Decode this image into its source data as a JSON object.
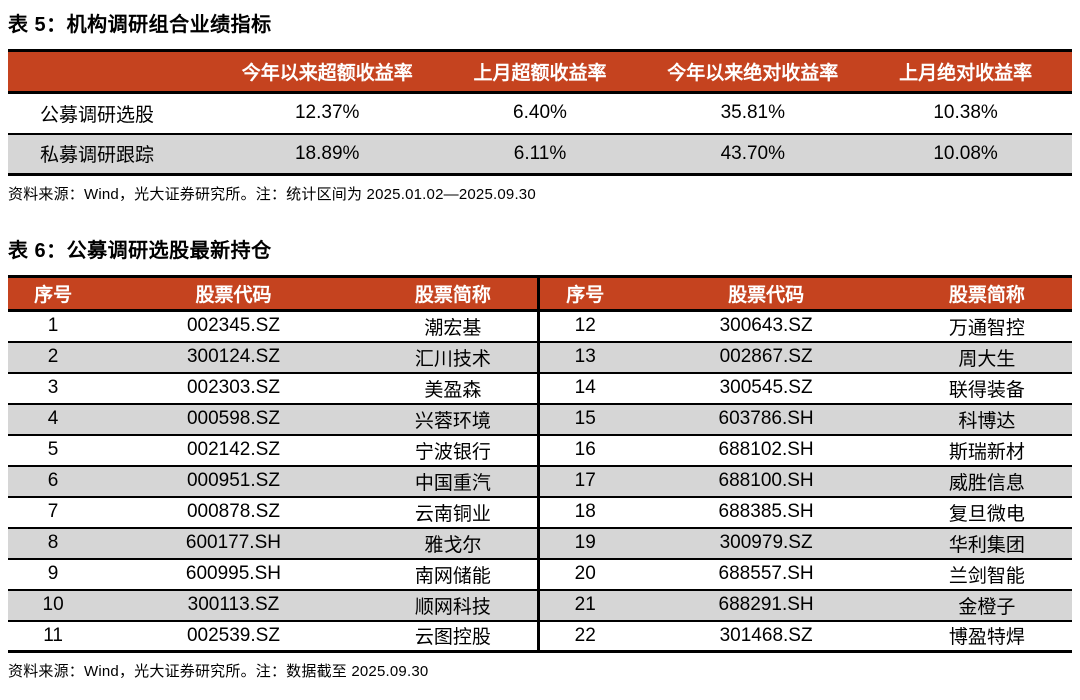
{
  "colors": {
    "header_bg": "#C5431F",
    "alt_row_bg": "#D6D6D6",
    "border": "#000000",
    "header_text": "#FFFFFF"
  },
  "table5": {
    "title": "表 5：机构调研组合业绩指标",
    "col_headers": [
      "今年以来超额收益率",
      "上月超额收益率",
      "今年以来绝对收益率",
      "上月绝对收益率"
    ],
    "rows": [
      {
        "label": "公募调研选股",
        "values": [
          "12.37%",
          "6.40%",
          "35.81%",
          "10.38%"
        ]
      },
      {
        "label": "私募调研跟踪",
        "values": [
          "18.89%",
          "6.11%",
          "43.70%",
          "10.08%"
        ]
      }
    ],
    "source_note": "资料来源：Wind，光大证券研究所。注：统计区间为 2025.01.02—2025.09.30"
  },
  "table6": {
    "title": "表 6：公募调研选股最新持仓",
    "col_headers": [
      "序号",
      "股票代码",
      "股票简称"
    ],
    "left_rows": [
      {
        "no": "1",
        "code": "002345.SZ",
        "name": "潮宏基"
      },
      {
        "no": "2",
        "code": "300124.SZ",
        "name": "汇川技术"
      },
      {
        "no": "3",
        "code": "002303.SZ",
        "name": "美盈森"
      },
      {
        "no": "4",
        "code": "000598.SZ",
        "name": "兴蓉环境"
      },
      {
        "no": "5",
        "code": "002142.SZ",
        "name": "宁波银行"
      },
      {
        "no": "6",
        "code": "000951.SZ",
        "name": "中国重汽"
      },
      {
        "no": "7",
        "code": "000878.SZ",
        "name": "云南铜业"
      },
      {
        "no": "8",
        "code": "600177.SH",
        "name": "雅戈尔"
      },
      {
        "no": "9",
        "code": "600995.SH",
        "name": "南网储能"
      },
      {
        "no": "10",
        "code": "300113.SZ",
        "name": "顺网科技"
      },
      {
        "no": "11",
        "code": "002539.SZ",
        "name": "云图控股"
      }
    ],
    "right_rows": [
      {
        "no": "12",
        "code": "300643.SZ",
        "name": "万通智控"
      },
      {
        "no": "13",
        "code": "002867.SZ",
        "name": "周大生"
      },
      {
        "no": "14",
        "code": "300545.SZ",
        "name": "联得装备"
      },
      {
        "no": "15",
        "code": "603786.SH",
        "name": "科博达"
      },
      {
        "no": "16",
        "code": "688102.SH",
        "name": "斯瑞新材"
      },
      {
        "no": "17",
        "code": "688100.SH",
        "name": "威胜信息"
      },
      {
        "no": "18",
        "code": "688385.SH",
        "name": "复旦微电"
      },
      {
        "no": "19",
        "code": "300979.SZ",
        "name": "华利集团"
      },
      {
        "no": "20",
        "code": "688557.SH",
        "name": "兰剑智能"
      },
      {
        "no": "21",
        "code": "688291.SH",
        "name": "金橙子"
      },
      {
        "no": "22",
        "code": "301468.SZ",
        "name": "博盈特焊"
      }
    ],
    "source_note": "资料来源：Wind，光大证券研究所。注：数据截至 2025.09.30"
  }
}
